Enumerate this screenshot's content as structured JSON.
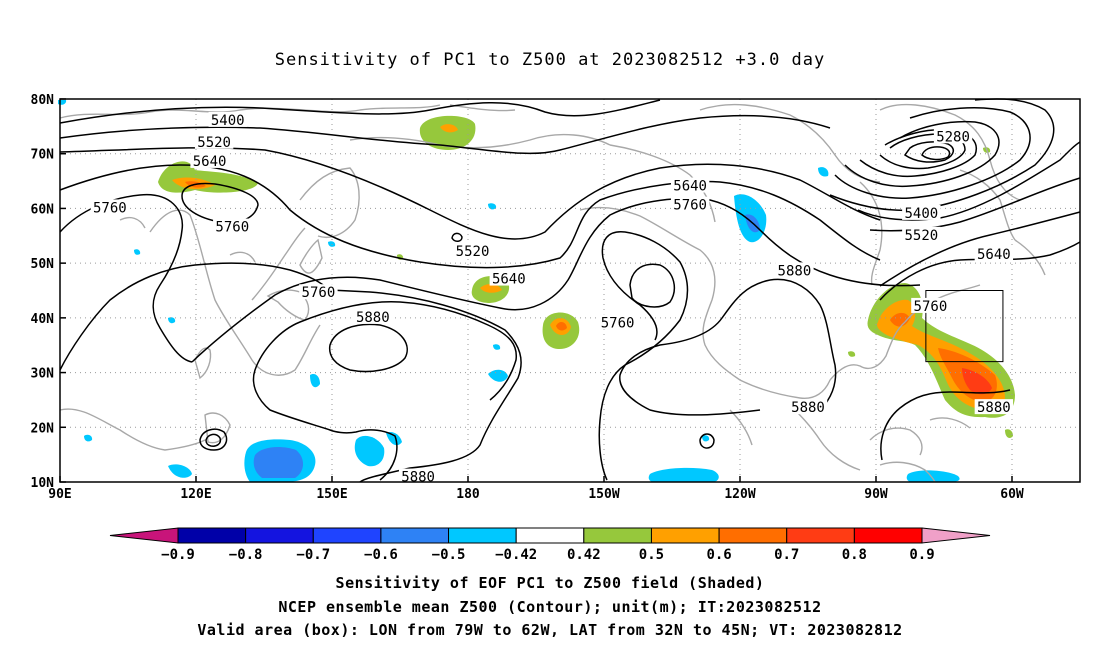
{
  "title": "Sensitivity of PC1 to Z500 at 2023082512 +3.0 day",
  "lat_labels": [
    "80N",
    "70N",
    "60N",
    "50N",
    "40N",
    "30N",
    "20N",
    "10N"
  ],
  "lon_labels": [
    "90E",
    "120E",
    "150E",
    "180",
    "150W",
    "120W",
    "90W",
    "60W"
  ],
  "contour_labels": [
    {
      "text": "5400",
      "lon": 127,
      "lat": 76
    },
    {
      "text": "5520",
      "lon": 124,
      "lat": 72
    },
    {
      "text": "5640",
      "lon": 123,
      "lat": 68.5
    },
    {
      "text": "5760",
      "lon": 101,
      "lat": 60
    },
    {
      "text": "5760",
      "lon": 128,
      "lat": 56.5
    },
    {
      "text": "5760",
      "lon": 147,
      "lat": 44.5
    },
    {
      "text": "5880",
      "lon": 159,
      "lat": 40
    },
    {
      "text": "5520",
      "lon": 181,
      "lat": 52
    },
    {
      "text": "5640",
      "lon": 189,
      "lat": 47
    },
    {
      "text": "5760",
      "lon": 213,
      "lat": 39
    },
    {
      "text": "5640",
      "lon": 229,
      "lat": 64
    },
    {
      "text": "5760",
      "lon": 229,
      "lat": 60.5
    },
    {
      "text": "5880",
      "lon": 252,
      "lat": 48.5
    },
    {
      "text": "5880",
      "lon": 255,
      "lat": 23.5
    },
    {
      "text": "5880",
      "lon": 169,
      "lat": 10.8
    },
    {
      "text": "5280",
      "lon": 287,
      "lat": 73
    },
    {
      "text": "5400",
      "lon": 280,
      "lat": 59
    },
    {
      "text": "5520",
      "lon": 280,
      "lat": 55
    },
    {
      "text": "5640",
      "lon": 296,
      "lat": 51.5
    },
    {
      "text": "5760",
      "lon": 282,
      "lat": 42
    },
    {
      "text": "5880",
      "lon": 296,
      "lat": 23.5
    }
  ],
  "valid_box": {
    "lon_min": -79,
    "lon_max": -62,
    "lat_min": 32,
    "lat_max": 45
  },
  "colorbar": {
    "labels": [
      "-0.9",
      "-0.8",
      "-0.7",
      "-0.6",
      "-0.5",
      "-0.42",
      "0.42",
      "0.5",
      "0.6",
      "0.7",
      "0.8",
      "0.9"
    ],
    "colors": [
      "#0000a8",
      "#1414e0",
      "#1f44ff",
      "#2e82f5",
      "#00c8ff",
      "#ffffff",
      "#96c83c",
      "#ffa000",
      "#ff6e00",
      "#ff3c14",
      "#ff0000"
    ],
    "low_end_color": "#c8147a",
    "high_end_color": "#f0a0c8"
  },
  "caption_lines": [
    "Sensitivity of EOF PC1 to Z500 field (Shaded)",
    "NCEP ensemble mean Z500 (Contour); unit(m); IT:2023082512",
    "Valid area (box): LON from 79W to 62W, LAT from 32N to 45N; VT: 2023082812"
  ]
}
